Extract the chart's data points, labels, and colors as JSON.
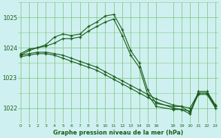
{
  "bg_color": "#cff0f0",
  "grid_color": "#80c880",
  "line_color": "#1a5c1a",
  "title": "Graphe pression niveau de la mer (hPa)",
  "ylabel_ticks": [
    1022,
    1023,
    1024,
    1025
  ],
  "xlim": [
    -0.3,
    23.3
  ],
  "ylim": [
    1021.5,
    1025.5
  ],
  "series": [
    {
      "x": [
        0,
        1,
        2,
        3,
        4,
        5,
        6,
        7,
        8,
        9,
        10,
        11,
        12,
        13,
        14,
        15,
        16,
        18,
        19,
        20,
        21,
        22,
        23
      ],
      "y": [
        1023.8,
        1023.95,
        1024.0,
        1024.1,
        1024.35,
        1024.45,
        1024.4,
        1024.45,
        1024.7,
        1024.85,
        1025.05,
        1025.1,
        1024.6,
        1023.9,
        1023.5,
        1022.6,
        1022.15,
        1022.05,
        1022.05,
        1021.85,
        1022.55,
        1022.55,
        1022.1
      ]
    },
    {
      "x": [
        0,
        1,
        2,
        3,
        4,
        5,
        6,
        7,
        8,
        9,
        10,
        11,
        12,
        13,
        14,
        15,
        16,
        18,
        19,
        20,
        21,
        22,
        23
      ],
      "y": [
        1023.75,
        1023.9,
        1024.0,
        1024.05,
        1024.15,
        1024.3,
        1024.3,
        1024.35,
        1024.55,
        1024.7,
        1024.85,
        1024.95,
        1024.4,
        1023.75,
        1023.35,
        1022.45,
        1022.05,
        1021.95,
        1021.95,
        1021.8,
        1022.5,
        1022.5,
        1022.05
      ]
    },
    {
      "x": [
        0,
        1,
        2,
        3,
        4,
        5,
        6,
        7,
        8,
        9,
        10,
        11,
        12,
        13,
        14,
        15,
        16,
        18,
        19,
        20,
        21,
        22,
        23
      ],
      "y": [
        1023.75,
        1023.8,
        1023.85,
        1023.85,
        1023.8,
        1023.75,
        1023.65,
        1023.55,
        1023.45,
        1023.35,
        1023.2,
        1023.05,
        1022.9,
        1022.75,
        1022.6,
        1022.45,
        1022.3,
        1022.1,
        1022.05,
        1022.0,
        1022.5,
        1022.5,
        1022.05
      ]
    },
    {
      "x": [
        0,
        1,
        2,
        3,
        4,
        5,
        6,
        7,
        8,
        9,
        10,
        11,
        12,
        13,
        14,
        15,
        16,
        18,
        19,
        20,
        21,
        22,
        23
      ],
      "y": [
        1023.7,
        1023.75,
        1023.8,
        1023.8,
        1023.75,
        1023.65,
        1023.55,
        1023.45,
        1023.35,
        1023.25,
        1023.1,
        1022.95,
        1022.8,
        1022.65,
        1022.5,
        1022.35,
        1022.2,
        1022.0,
        1021.95,
        1021.9,
        1022.45,
        1022.45,
        1022.0
      ]
    }
  ],
  "xtick_labels": [
    "0",
    "1",
    "2",
    "3",
    "4",
    "5",
    "6",
    "7",
    "8",
    "9",
    "10",
    "11",
    "12",
    "13",
    "14",
    "15",
    "16",
    "18",
    "19",
    "20",
    "21",
    "22",
    "23"
  ],
  "xtick_positions": [
    0,
    1,
    2,
    3,
    4,
    5,
    6,
    7,
    8,
    9,
    10,
    11,
    12,
    13,
    14,
    15,
    16,
    18,
    19,
    20,
    21,
    22,
    23
  ]
}
